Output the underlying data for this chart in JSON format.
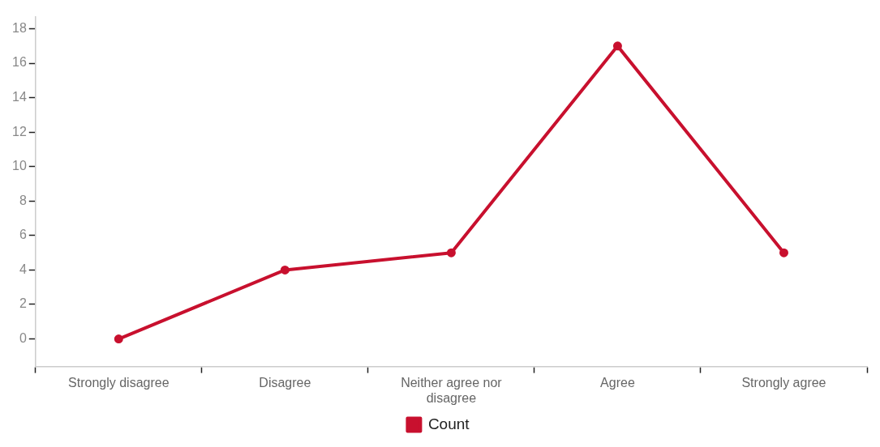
{
  "chart_data": {
    "type": "line",
    "categories": [
      "Strongly disagree",
      "Disagree",
      "Neither agree nor disagree",
      "Agree",
      "Strongly agree"
    ],
    "series": [
      {
        "name": "Count",
        "color": "#c8102e",
        "values": [
          0,
          4,
          5,
          17,
          5
        ]
      }
    ],
    "ylim": [
      -1.6,
      18.7
    ],
    "yticks": [
      0,
      2,
      4,
      6,
      8,
      10,
      12,
      14,
      16,
      18
    ],
    "grid": false,
    "legend": "bottom",
    "marker": "circle",
    "line_style": "solid"
  }
}
